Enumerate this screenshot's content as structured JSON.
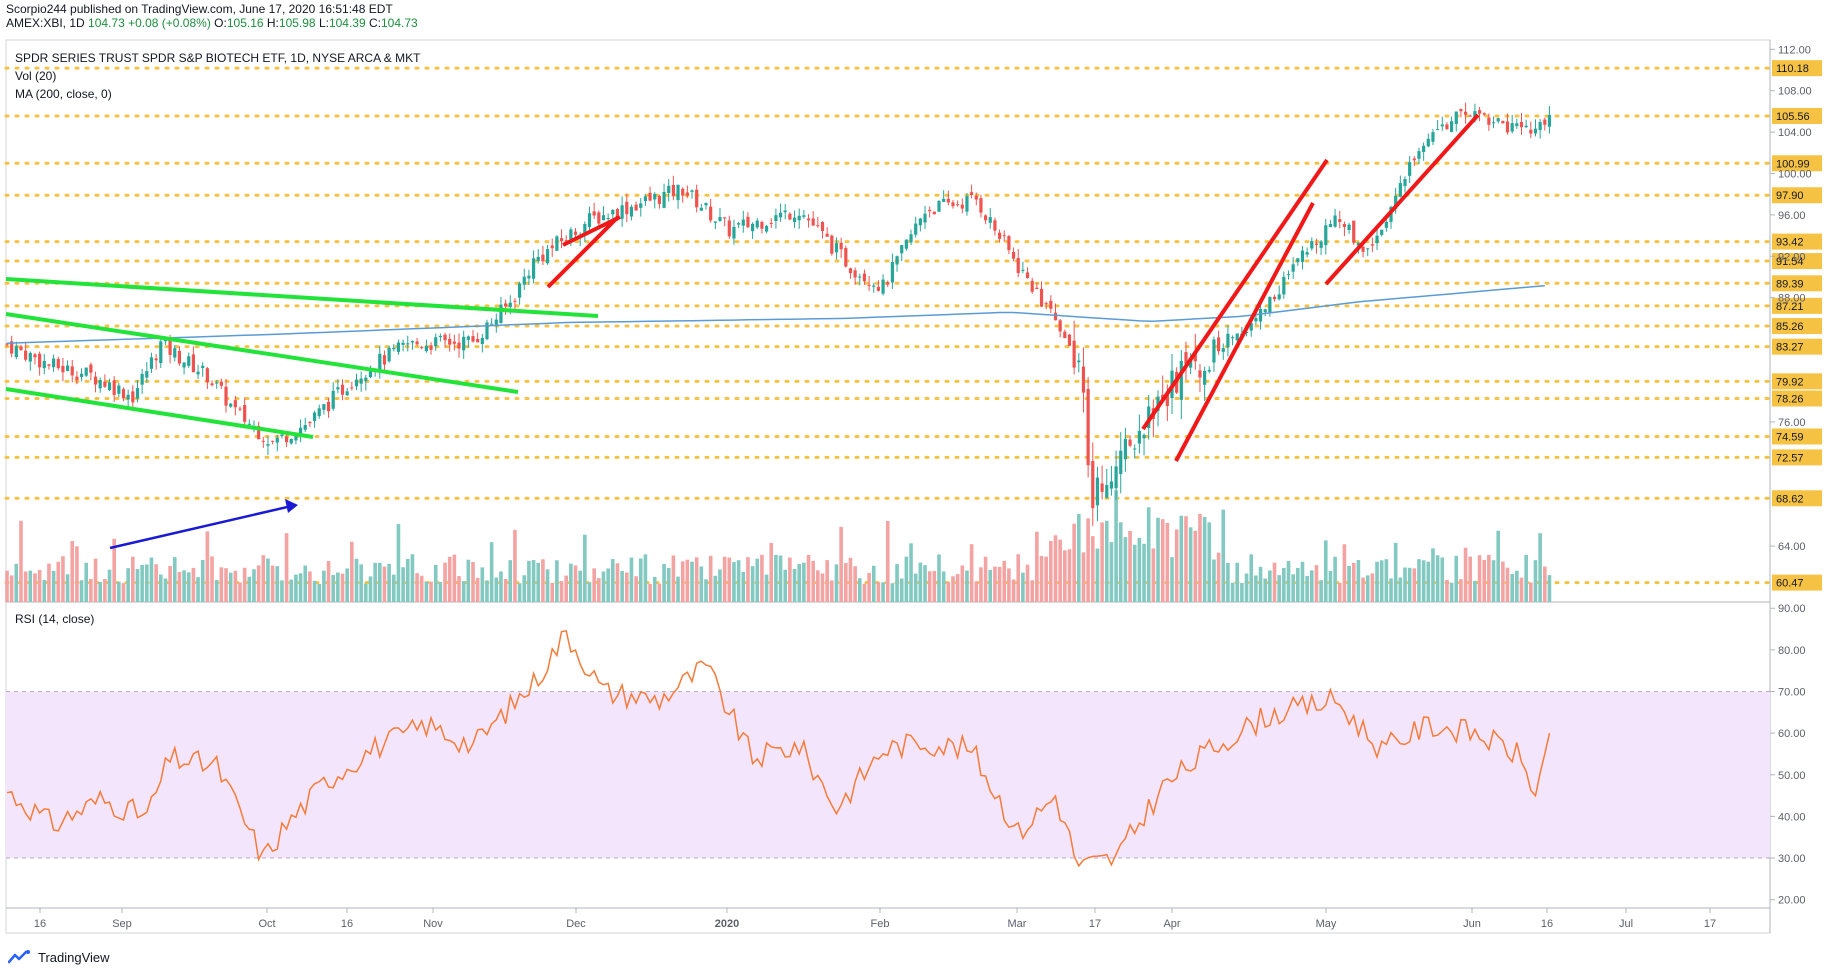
{
  "header": {
    "publish": "Scorpio244 published on TradingView.com, June 17, 2020 16:51:48 EDT",
    "symbol": "AMEX:XBI, 1D",
    "last": "104.73",
    "change": "+0.08 (+0.08%)",
    "o_label": "O:",
    "o_value": "105.16",
    "h_label": "H:",
    "h_value": "105.98",
    "l_label": "L:",
    "l_value": "104.39",
    "c_label": "C:",
    "c_value": "104.73"
  },
  "legend": {
    "title": "SPDR SERIES TRUST SPDR S&P BIOTECH ETF, 1D, NYSE ARCA & MKT",
    "vol": "Vol (20)",
    "ma": "MA (200, close, 0)",
    "rsi": "RSI (14, close)"
  },
  "footer": {
    "brand": "TradingView"
  },
  "colors": {
    "up": "#26a69a",
    "down": "#ef5350",
    "vol_up": "#82c9c1",
    "vol_down": "#f4a3a3",
    "ma": "#5b9bd5",
    "rsi": "#f57c3a",
    "rsi_band": "#f3e5fb",
    "level": "#f6c244",
    "green_line": "#22e33a",
    "red_line": "#f01818",
    "blue_arrow": "#1a1ad4"
  },
  "chart_data": [
    {
      "type": "candlestick",
      "title": "SPDR SERIES TRUST SPDR S&P BIOTECH ETF, 1D, NYSE ARCA & MKT",
      "x_tick_labels": [
        "16",
        "Sep",
        "Oct",
        "16",
        "Nov",
        "Dec",
        "2020",
        "Feb",
        "Mar",
        "17",
        "Apr",
        "May",
        "Jun",
        "16",
        "Jul",
        "17"
      ],
      "y_axis_ticks": [
        "112.00",
        "108.00",
        "104.00",
        "100.00",
        "96.00",
        "92.00",
        "88.00",
        "76.00",
        "64.00"
      ],
      "ylim": [
        58.5,
        112.9
      ],
      "price_levels": [
        "110.18",
        "105.56",
        "100.99",
        "97.90",
        "93.42",
        "91.54",
        "89.39",
        "87.21",
        "85.26",
        "83.27",
        "79.92",
        "78.26",
        "74.59",
        "72.57",
        "68.62",
        "60.47"
      ],
      "anchors_price": [
        [
          0,
          83.5
        ],
        [
          9,
          81.5
        ],
        [
          18,
          80.5
        ],
        [
          27,
          78.5
        ],
        [
          33,
          83.5
        ],
        [
          43,
          80.5
        ],
        [
          49,
          77
        ],
        [
          57,
          74
        ],
        [
          65,
          76
        ],
        [
          75,
          80.5
        ],
        [
          86,
          83.5
        ],
        [
          100,
          83.8
        ],
        [
          108,
          87.5
        ],
        [
          113,
          91.5
        ],
        [
          125,
          95.5
        ],
        [
          145,
          98.5
        ],
        [
          155,
          94.5
        ],
        [
          170,
          96.5
        ],
        [
          181,
          91
        ],
        [
          188,
          89
        ],
        [
          197,
          96.5
        ],
        [
          208,
          97.5
        ],
        [
          217,
          91
        ],
        [
          225,
          86
        ],
        [
          230,
          82
        ],
        [
          233,
          69
        ],
        [
          240,
          74
        ],
        [
          251,
          80
        ],
        [
          268,
          86
        ],
        [
          285,
          96
        ],
        [
          292,
          92.5
        ],
        [
          299,
          98.5
        ],
        [
          305,
          104
        ],
        [
          315,
          106
        ],
        [
          325,
          104
        ],
        [
          331,
          105
        ]
      ],
      "ma200": [
        [
          0,
          83.6
        ],
        [
          60,
          84.5
        ],
        [
          120,
          85.6
        ],
        [
          180,
          86
        ],
        [
          215,
          86.6
        ],
        [
          245,
          85.7
        ],
        [
          265,
          86.2
        ],
        [
          290,
          87.6
        ],
        [
          331,
          89.2
        ]
      ]
    },
    {
      "type": "bar",
      "title": "Vol (20)",
      "y_axis_ticks": [],
      "note": "volume histogram, heights relative"
    },
    {
      "type": "line",
      "title": "RSI (14, close)",
      "y_axis_ticks": [
        "90.00",
        "80.00",
        "70.00",
        "60.00",
        "50.00",
        "40.00",
        "30.00",
        "20.00"
      ],
      "ylim": [
        18,
        91.5
      ],
      "band": [
        30,
        70
      ],
      "anchors": [
        [
          0,
          46
        ],
        [
          10,
          38
        ],
        [
          20,
          44
        ],
        [
          30,
          40
        ],
        [
          35,
          54
        ],
        [
          45,
          52
        ],
        [
          55,
          30
        ],
        [
          60,
          38
        ],
        [
          68,
          48
        ],
        [
          78,
          56
        ],
        [
          90,
          62
        ],
        [
          100,
          57
        ],
        [
          113,
          72
        ],
        [
          120,
          84
        ],
        [
          128,
          70
        ],
        [
          140,
          68
        ],
        [
          150,
          76
        ],
        [
          160,
          54
        ],
        [
          170,
          57
        ],
        [
          178,
          42
        ],
        [
          188,
          56
        ],
        [
          196,
          58
        ],
        [
          207,
          56
        ],
        [
          217,
          36
        ],
        [
          225,
          45
        ],
        [
          230,
          28
        ],
        [
          238,
          30
        ],
        [
          248,
          47
        ],
        [
          258,
          56
        ],
        [
          270,
          64
        ],
        [
          285,
          68
        ],
        [
          295,
          56
        ],
        [
          305,
          62
        ],
        [
          315,
          60
        ],
        [
          324,
          55
        ],
        [
          328,
          46
        ],
        [
          331,
          57
        ]
      ]
    }
  ]
}
